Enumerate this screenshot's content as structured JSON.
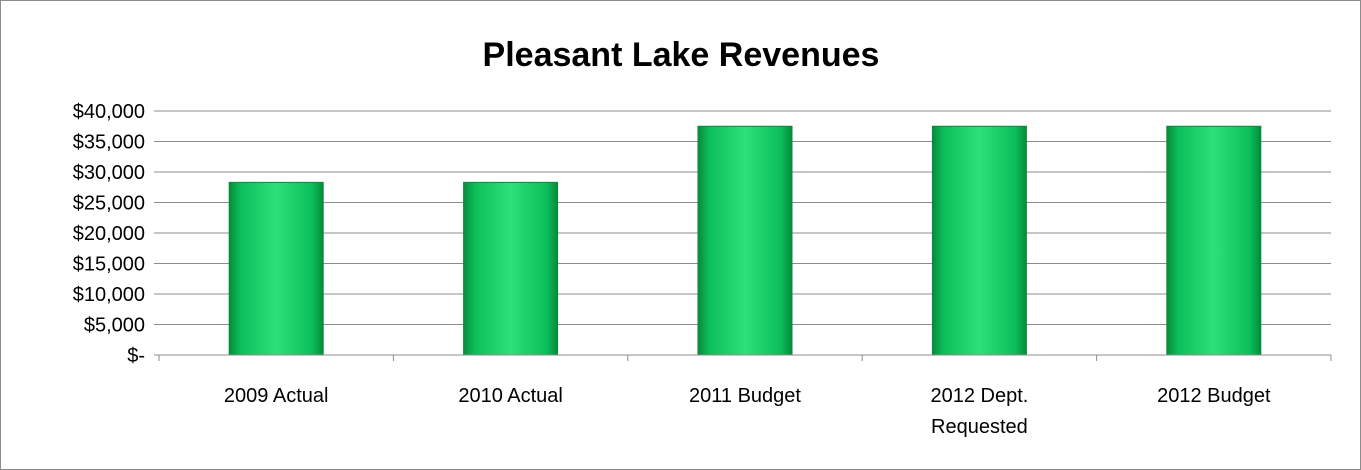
{
  "chart_data": {
    "type": "bar",
    "title": "Pleasant Lake Revenues",
    "categories": [
      "2009 Actual",
      "2010 Actual",
      "2011 Budget",
      "2012 Dept.\nRequested",
      "2012 Budget"
    ],
    "values": [
      28300,
      28300,
      37500,
      37500,
      37500
    ],
    "ylim": [
      0,
      40000
    ],
    "yticks": [
      {
        "value": 0,
        "label": "$-"
      },
      {
        "value": 5000,
        "label": "$5,000"
      },
      {
        "value": 10000,
        "label": "$10,000"
      },
      {
        "value": 15000,
        "label": "$15,000"
      },
      {
        "value": 20000,
        "label": "$20,000"
      },
      {
        "value": 25000,
        "label": "$25,000"
      },
      {
        "value": 30000,
        "label": "$30,000"
      },
      {
        "value": 35000,
        "label": "$35,000"
      },
      {
        "value": 40000,
        "label": "$40,000"
      }
    ],
    "xlabel": "",
    "ylabel": "",
    "grid": true,
    "legend": "none",
    "colors": {
      "bar": "#0bbf5a",
      "bar_dark": "#078a3c",
      "bar_light": "#2fe07a"
    }
  }
}
